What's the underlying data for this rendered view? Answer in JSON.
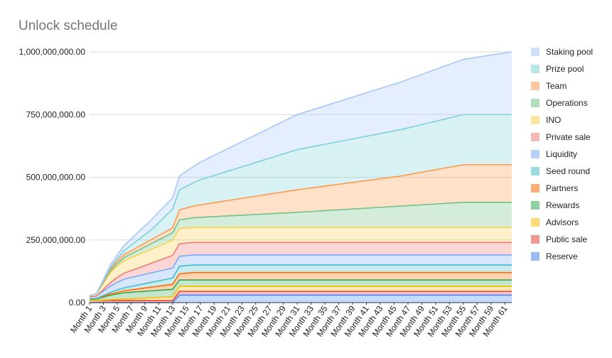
{
  "chart_data": {
    "type": "area",
    "stacked": true,
    "title": "Unlock schedule",
    "xlabel": "",
    "ylabel": "",
    "ylim": [
      0,
      1000000000
    ],
    "y_ticks": [
      "0.00",
      "250,000,000.00",
      "500,000,000.00",
      "750,000,000.00",
      "1,000,000,000.00"
    ],
    "x_tick_labels": [
      "Month 1",
      "Month 3",
      "Month 5",
      "Month 7",
      "Month 9",
      "Month 11",
      "Month 13",
      "Month 15",
      "Month 17",
      "Month 19",
      "Month 21",
      "Month 23",
      "Month 25",
      "Month 27",
      "Month 29",
      "Month 31",
      "Month 33",
      "Month 35",
      "Month 37",
      "Month 39",
      "Month 41",
      "Month 43",
      "Month 45",
      "Month 47",
      "Month 49",
      "Month 51",
      "Month 53",
      "Month 55",
      "Month 57",
      "Month 59",
      "Month 61"
    ],
    "months": 62,
    "grid": "horizontal",
    "legend_position": "right",
    "legend": [
      "Staking pool",
      "Prize pool",
      "Team",
      "Operations",
      "INO",
      "Private sale",
      "Liquidity",
      "Seed round",
      "Partners",
      "Rewards",
      "Advisors",
      "Public sale",
      "Reserve"
    ],
    "series": [
      {
        "name": "Reserve",
        "color": "#4285f4",
        "points": [
          [
            0,
            0
          ],
          [
            12,
            0
          ],
          [
            13,
            30000000
          ],
          [
            61,
            30000000
          ]
        ]
      },
      {
        "name": "Public sale",
        "color": "#ea4335",
        "points": [
          [
            0,
            8000000
          ],
          [
            12,
            8000000
          ],
          [
            13,
            15000000
          ],
          [
            61,
            15000000
          ]
        ]
      },
      {
        "name": "Advisors",
        "color": "#fbbc04",
        "points": [
          [
            0,
            0
          ],
          [
            1,
            0
          ],
          [
            4,
            5000000
          ],
          [
            12,
            15000000
          ],
          [
            13,
            20000000
          ],
          [
            61,
            20000000
          ]
        ]
      },
      {
        "name": "Rewards",
        "color": "#34a853",
        "points": [
          [
            0,
            5000000
          ],
          [
            1,
            6000000
          ],
          [
            3,
            18000000
          ],
          [
            5,
            25000000
          ],
          [
            12,
            30000000
          ],
          [
            13,
            25000000
          ],
          [
            61,
            25000000
          ]
        ]
      },
      {
        "name": "Partners",
        "color": "#ff6d01",
        "points": [
          [
            0,
            2000000
          ],
          [
            1,
            2000000
          ],
          [
            4,
            6000000
          ],
          [
            12,
            20000000
          ],
          [
            13,
            25000000
          ],
          [
            15,
            30000000
          ],
          [
            61,
            30000000
          ]
        ]
      },
      {
        "name": "Seed round",
        "color": "#46bdc6",
        "points": [
          [
            0,
            0
          ],
          [
            1,
            0
          ],
          [
            4,
            10000000
          ],
          [
            12,
            25000000
          ],
          [
            13,
            30000000
          ],
          [
            61,
            30000000
          ]
        ]
      },
      {
        "name": "Liquidity",
        "color": "#7baaf7",
        "points": [
          [
            0,
            8000000
          ],
          [
            1,
            10000000
          ],
          [
            3,
            25000000
          ],
          [
            5,
            35000000
          ],
          [
            12,
            40000000
          ],
          [
            61,
            40000000
          ]
        ]
      },
      {
        "name": "Private sale",
        "color": "#f07b72",
        "points": [
          [
            0,
            0
          ],
          [
            1,
            0
          ],
          [
            4,
            20000000
          ],
          [
            12,
            50000000
          ],
          [
            61,
            50000000
          ]
        ]
      },
      {
        "name": "INO",
        "color": "#fcd04f",
        "points": [
          [
            0,
            5000000
          ],
          [
            1,
            10000000
          ],
          [
            3,
            40000000
          ],
          [
            5,
            50000000
          ],
          [
            12,
            60000000
          ],
          [
            61,
            60000000
          ]
        ]
      },
      {
        "name": "Operations",
        "color": "#71c287",
        "points": [
          [
            0,
            0
          ],
          [
            1,
            0
          ],
          [
            4,
            10000000
          ],
          [
            12,
            30000000
          ],
          [
            13,
            35000000
          ],
          [
            16,
            40000000
          ],
          [
            30,
            60000000
          ],
          [
            45,
            85000000
          ],
          [
            54,
            100000000
          ],
          [
            61,
            100000000
          ]
        ]
      },
      {
        "name": "Team",
        "color": "#ff994d",
        "points": [
          [
            0,
            0
          ],
          [
            1,
            0
          ],
          [
            4,
            10000000
          ],
          [
            12,
            20000000
          ],
          [
            13,
            40000000
          ],
          [
            16,
            50000000
          ],
          [
            30,
            90000000
          ],
          [
            45,
            120000000
          ],
          [
            54,
            150000000
          ],
          [
            61,
            150000000
          ]
        ]
      },
      {
        "name": "Prize pool",
        "color": "#7ed1d7",
        "points": [
          [
            0,
            0
          ],
          [
            1,
            0
          ],
          [
            4,
            10000000
          ],
          [
            9,
            40000000
          ],
          [
            12,
            75000000
          ],
          [
            13,
            80000000
          ],
          [
            16,
            100000000
          ],
          [
            30,
            160000000
          ],
          [
            45,
            185000000
          ],
          [
            54,
            200000000
          ],
          [
            61,
            200000000
          ]
        ]
      },
      {
        "name": "Staking pool",
        "color": "#a7c7f9",
        "points": [
          [
            0,
            0
          ],
          [
            1,
            0
          ],
          [
            4,
            15000000
          ],
          [
            9,
            40000000
          ],
          [
            12,
            45000000
          ],
          [
            13,
            55000000
          ],
          [
            16,
            70000000
          ],
          [
            30,
            140000000
          ],
          [
            45,
            190000000
          ],
          [
            54,
            220000000
          ],
          [
            61,
            250000000
          ]
        ]
      }
    ]
  }
}
